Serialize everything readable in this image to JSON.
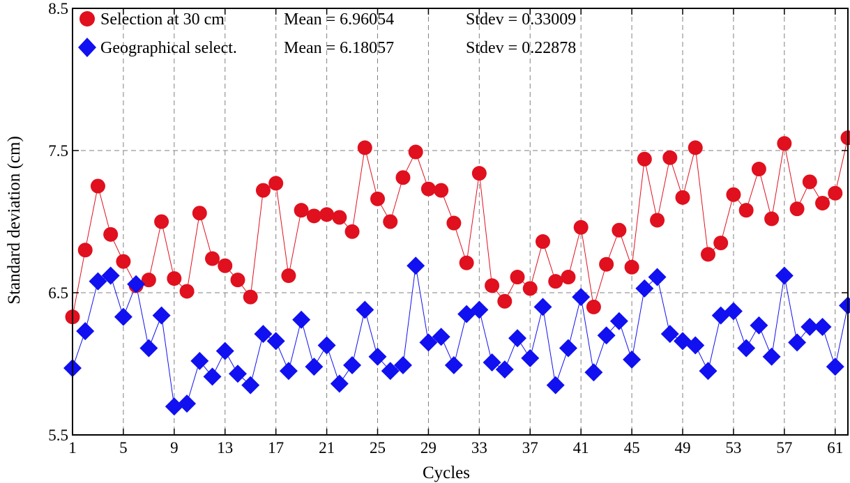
{
  "chart_data": {
    "type": "line",
    "xlabel": "Cycles",
    "ylabel": "Standard deviation (cm)",
    "xlim": [
      1,
      62
    ],
    "ylim": [
      5.5,
      8.5
    ],
    "x_ticks": [
      1,
      5,
      9,
      13,
      17,
      21,
      25,
      29,
      33,
      37,
      41,
      45,
      49,
      53,
      57,
      61
    ],
    "y_ticks": [
      5.5,
      6.5,
      7.5,
      8.5
    ],
    "grid": true,
    "legend_position": "top-left",
    "legend": [
      {
        "name": "Selection at 30 cm",
        "mean_text": "Mean = 6.96054",
        "stdev_text": "Stdev = 0.33009"
      },
      {
        "name": "Geographical select.",
        "mean_text": "Mean = 6.18057",
        "stdev_text": "Stdev = 0.22878"
      }
    ],
    "x": [
      1,
      2,
      3,
      4,
      5,
      6,
      7,
      8,
      9,
      10,
      11,
      12,
      13,
      14,
      15,
      16,
      17,
      18,
      19,
      20,
      21,
      22,
      23,
      24,
      25,
      26,
      27,
      28,
      29,
      30,
      31,
      32,
      33,
      34,
      35,
      36,
      37,
      38,
      39,
      40,
      41,
      42,
      43,
      44,
      45,
      46,
      47,
      48,
      49,
      50,
      51,
      52,
      53,
      54,
      55,
      56,
      57,
      58,
      59,
      60,
      61,
      62
    ],
    "series": [
      {
        "name": "Selection at 30 cm",
        "color": "#e0101e",
        "marker": "circle",
        "values": [
          6.33,
          6.8,
          7.25,
          6.91,
          6.72,
          6.55,
          6.59,
          7.0,
          6.6,
          6.51,
          7.06,
          6.74,
          6.69,
          6.59,
          6.47,
          7.22,
          7.27,
          6.62,
          7.08,
          7.04,
          7.05,
          7.03,
          6.93,
          7.52,
          7.16,
          7.0,
          7.31,
          7.49,
          7.23,
          7.22,
          6.99,
          6.71,
          7.34,
          6.55,
          6.44,
          6.61,
          6.53,
          6.86,
          6.58,
          6.61,
          6.96,
          6.4,
          6.7,
          6.94,
          6.68,
          7.44,
          7.01,
          7.45,
          7.17,
          7.52,
          6.77,
          6.85,
          7.19,
          7.08,
          7.37,
          7.02,
          7.55,
          7.09,
          7.28,
          7.13,
          7.2,
          7.59
        ]
      },
      {
        "name": "Geographical select.",
        "color": "#1010f0",
        "marker": "diamond",
        "values": [
          5.97,
          6.23,
          6.58,
          6.62,
          6.33,
          6.56,
          6.11,
          6.34,
          5.7,
          5.72,
          6.02,
          5.91,
          6.09,
          5.93,
          5.85,
          6.21,
          6.16,
          5.95,
          6.31,
          5.98,
          6.13,
          5.86,
          5.99,
          6.38,
          6.05,
          5.95,
          5.99,
          6.69,
          6.15,
          6.19,
          5.99,
          6.35,
          6.38,
          6.01,
          5.96,
          6.18,
          6.04,
          6.4,
          5.85,
          6.11,
          6.47,
          5.94,
          6.2,
          6.3,
          6.03,
          6.53,
          6.61,
          6.21,
          6.16,
          6.13,
          5.95,
          6.34,
          6.37,
          6.11,
          6.27,
          6.05,
          6.62,
          6.15,
          6.26,
          6.26,
          5.98,
          6.41
        ]
      }
    ]
  }
}
